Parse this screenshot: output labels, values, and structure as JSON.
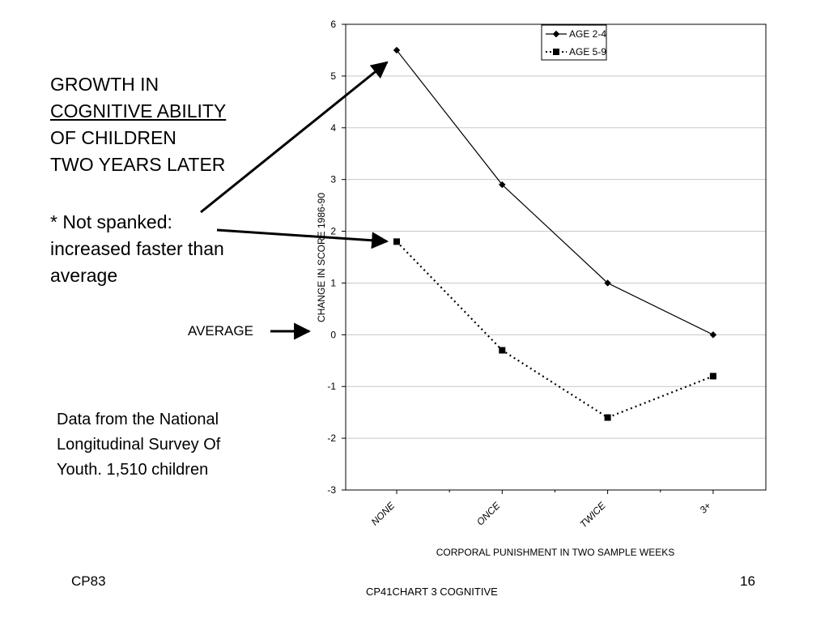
{
  "slide": {
    "title_lines": [
      "GROWTH  IN",
      "COGNITIVE ABILITY",
      "OF CHILDREN",
      "TWO YEARS LATER"
    ],
    "note_lines": [
      "* Not spanked:",
      "increased faster than",
      "average"
    ],
    "average_label": "AVERAGE",
    "source_lines": [
      "Data from the National",
      "Longitudinal Survey Of",
      "Youth.  1,510 children"
    ],
    "footer_left": "CP83",
    "footer_center": "CP41CHART 3 COGNITIVE",
    "page_number": "16"
  },
  "chart_data": {
    "type": "line",
    "categories": [
      "NONE",
      "ONCE",
      "TWICE",
      "3+"
    ],
    "series": [
      {
        "name": "AGE 2-4",
        "values": [
          5.5,
          2.9,
          1.0,
          0.0
        ],
        "style": "solid",
        "marker": "diamond"
      },
      {
        "name": "AGE 5-9",
        "values": [
          1.8,
          -0.3,
          -1.6,
          -0.8
        ],
        "style": "dotted",
        "marker": "square"
      }
    ],
    "xlabel": "CORPORAL PUNISHMENT IN TWO SAMPLE WEEKS",
    "ylabel": "CHANGE IN SCORE 1986-90",
    "ylim": [
      -3,
      6
    ],
    "yticks": [
      -3,
      -2,
      -1,
      0,
      1,
      2,
      3,
      4,
      5,
      6
    ],
    "grid": true,
    "legend_position": "top-right"
  }
}
